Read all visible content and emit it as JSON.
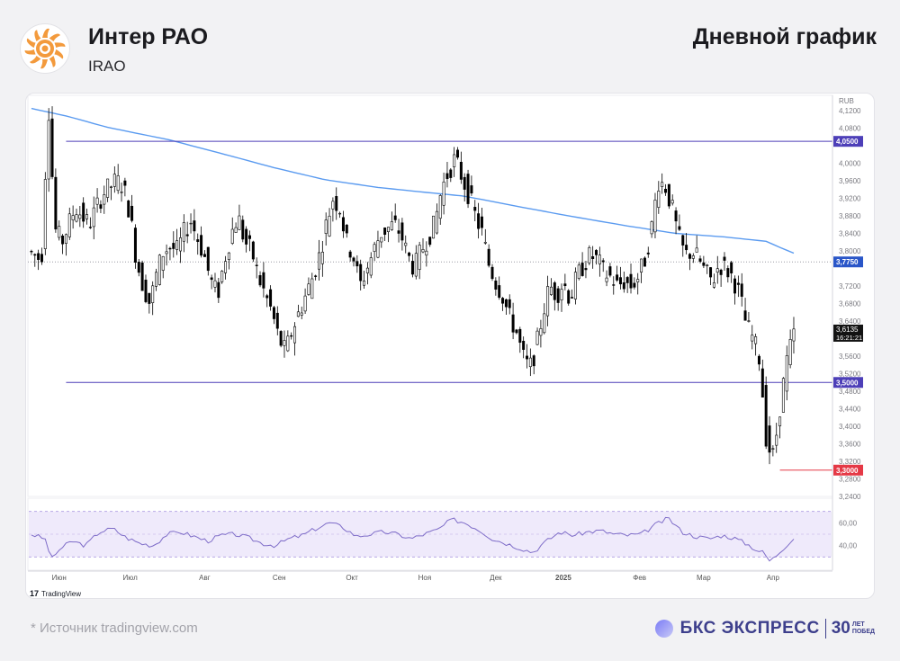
{
  "header": {
    "company": "Интер РАО",
    "ticker": "IRAO",
    "chart_type_label": "Дневной график"
  },
  "footer": {
    "source": "* Источник tradingview.com",
    "brand_name": "БКС ЭКСПРЕСС",
    "brand_years": "30",
    "brand_tag_1": "ЛЕТ",
    "brand_tag_2": "ПОБЕД",
    "watermark": "TradingView"
  },
  "colors": {
    "up_candle": "#ffffff",
    "down_candle": "#000000",
    "moving_average": "#5b9bf0",
    "support_resistance": "#4d3fb8",
    "low_marker": "#e53946",
    "rsi_line": "#7e6cc8",
    "rsi_band": "#efeafb"
  },
  "chart_data": {
    "type": "candlestick",
    "currency": "RUB",
    "y_range": [
      3.24,
      4.155
    ],
    "y_ticks": [
      "4,1200",
      "4,0800",
      "4,0000",
      "3,9600",
      "3,9200",
      "3,8800",
      "3,8400",
      "3,8000",
      "3,7200",
      "3,6800",
      "3,6400",
      "3,5600",
      "3,5200",
      "3,4800",
      "3,4400",
      "3,4000",
      "3,3600",
      "3,3200",
      "3,2800",
      "3,2400"
    ],
    "x_labels": [
      "Июн",
      "Июл",
      "Авг",
      "Сен",
      "Окт",
      "Ноя",
      "Дек",
      "2025",
      "Фев",
      "Мар",
      "Апр"
    ],
    "x_label_positions": [
      8.0,
      28.5,
      50.0,
      71.5,
      92.5,
      113.5,
      134.0,
      153.5,
      175.5,
      194.0,
      214.0
    ],
    "n_sessions": 221,
    "levels": [
      {
        "value": 4.05,
        "label": "4,0500",
        "style": "solid"
      },
      {
        "value": 3.775,
        "label": "3,7750",
        "style": "dotted"
      },
      {
        "value": 3.5,
        "label": "3,5000",
        "style": "solid"
      },
      {
        "value": 3.3,
        "label": "3,3000",
        "style": "low"
      }
    ],
    "last_price": {
      "value": 3.6135,
      "label": "3,6135",
      "time": "16:21:21"
    },
    "moving_average": [
      [
        0,
        4.125
      ],
      [
        10,
        4.108
      ],
      [
        22,
        4.082
      ],
      [
        40,
        4.053
      ],
      [
        55,
        4.022
      ],
      [
        70,
        3.99
      ],
      [
        85,
        3.962
      ],
      [
        100,
        3.945
      ],
      [
        112,
        3.935
      ],
      [
        125,
        3.925
      ],
      [
        140,
        3.902
      ],
      [
        155,
        3.88
      ],
      [
        172,
        3.857
      ],
      [
        186,
        3.84
      ],
      [
        200,
        3.832
      ],
      [
        212,
        3.822
      ],
      [
        216,
        3.808
      ],
      [
        220,
        3.795
      ]
    ],
    "price_path": [
      [
        0,
        3.8
      ],
      [
        4,
        3.78
      ],
      [
        6,
        4.14
      ],
      [
        8,
        3.85
      ],
      [
        10,
        3.82
      ],
      [
        14,
        3.9
      ],
      [
        18,
        3.86
      ],
      [
        22,
        3.93
      ],
      [
        26,
        3.96
      ],
      [
        28,
        3.95
      ],
      [
        30,
        3.89
      ],
      [
        32,
        3.78
      ],
      [
        34,
        3.72
      ],
      [
        36,
        3.68
      ],
      [
        38,
        3.75
      ],
      [
        40,
        3.8
      ],
      [
        42,
        3.81
      ],
      [
        44,
        3.8
      ],
      [
        46,
        3.84
      ],
      [
        48,
        3.87
      ],
      [
        50,
        3.83
      ],
      [
        52,
        3.79
      ],
      [
        54,
        3.73
      ],
      [
        56,
        3.7
      ],
      [
        58,
        3.78
      ],
      [
        60,
        3.84
      ],
      [
        62,
        3.88
      ],
      [
        64,
        3.82
      ],
      [
        66,
        3.8
      ],
      [
        68,
        3.74
      ],
      [
        70,
        3.7
      ],
      [
        72,
        3.66
      ],
      [
        74,
        3.6
      ],
      [
        76,
        3.57
      ],
      [
        78,
        3.62
      ],
      [
        80,
        3.66
      ],
      [
        82,
        3.7
      ],
      [
        84,
        3.74
      ],
      [
        86,
        3.79
      ],
      [
        88,
        3.86
      ],
      [
        90,
        3.92
      ],
      [
        92,
        3.9
      ],
      [
        94,
        3.82
      ],
      [
        96,
        3.79
      ],
      [
        98,
        3.72
      ],
      [
        100,
        3.76
      ],
      [
        102,
        3.8
      ],
      [
        104,
        3.84
      ],
      [
        106,
        3.85
      ],
      [
        108,
        3.86
      ],
      [
        110,
        3.84
      ],
      [
        112,
        3.79
      ],
      [
        114,
        3.76
      ],
      [
        116,
        3.8
      ],
      [
        118,
        3.83
      ],
      [
        120,
        3.86
      ],
      [
        122,
        3.94
      ],
      [
        124,
        3.98
      ],
      [
        126,
        4.01
      ],
      [
        128,
        3.97
      ],
      [
        130,
        3.93
      ],
      [
        132,
        3.88
      ],
      [
        134,
        3.84
      ],
      [
        136,
        3.77
      ],
      [
        138,
        3.73
      ],
      [
        140,
        3.7
      ],
      [
        142,
        3.65
      ],
      [
        144,
        3.62
      ],
      [
        146,
        3.56
      ],
      [
        148,
        3.53
      ],
      [
        150,
        3.58
      ],
      [
        152,
        3.66
      ],
      [
        154,
        3.72
      ],
      [
        156,
        3.7
      ],
      [
        158,
        3.73
      ],
      [
        160,
        3.69
      ],
      [
        162,
        3.74
      ],
      [
        164,
        3.77
      ],
      [
        166,
        3.79
      ],
      [
        168,
        3.78
      ],
      [
        170,
        3.75
      ],
      [
        172,
        3.74
      ],
      [
        174,
        3.72
      ],
      [
        176,
        3.73
      ],
      [
        178,
        3.72
      ],
      [
        180,
        3.74
      ],
      [
        182,
        3.78
      ],
      [
        184,
        3.85
      ],
      [
        186,
        3.96
      ],
      [
        188,
        3.95
      ],
      [
        190,
        3.9
      ],
      [
        192,
        3.83
      ],
      [
        194,
        3.79
      ],
      [
        196,
        3.8
      ],
      [
        198,
        3.78
      ],
      [
        200,
        3.75
      ],
      [
        202,
        3.73
      ],
      [
        204,
        3.77
      ],
      [
        206,
        3.76
      ],
      [
        208,
        3.74
      ],
      [
        210,
        3.7
      ],
      [
        212,
        3.63
      ],
      [
        214,
        3.6
      ],
      [
        216,
        3.55
      ],
      [
        218,
        3.36
      ],
      [
        220,
        3.33
      ],
      [
        222,
        3.45
      ],
      [
        224,
        3.55
      ],
      [
        226,
        3.61
      ]
    ],
    "rsi_range": [
      20,
      80
    ],
    "rsi_ticks": [
      "60,00",
      "40,00"
    ],
    "rsi_path": [
      [
        0,
        50
      ],
      [
        4,
        46
      ],
      [
        6,
        28
      ],
      [
        8,
        36
      ],
      [
        12,
        44
      ],
      [
        16,
        40
      ],
      [
        20,
        52
      ],
      [
        24,
        55
      ],
      [
        28,
        47
      ],
      [
        32,
        42
      ],
      [
        36,
        40
      ],
      [
        40,
        50
      ],
      [
        44,
        52
      ],
      [
        48,
        48
      ],
      [
        52,
        44
      ],
      [
        56,
        49
      ],
      [
        60,
        50
      ],
      [
        64,
        47
      ],
      [
        68,
        42
      ],
      [
        72,
        40
      ],
      [
        76,
        46
      ],
      [
        80,
        49
      ],
      [
        84,
        55
      ],
      [
        88,
        60
      ],
      [
        92,
        56
      ],
      [
        96,
        48
      ],
      [
        100,
        50
      ],
      [
        104,
        52
      ],
      [
        108,
        50
      ],
      [
        112,
        46
      ],
      [
        116,
        50
      ],
      [
        120,
        54
      ],
      [
        124,
        63
      ],
      [
        128,
        60
      ],
      [
        132,
        54
      ],
      [
        136,
        46
      ],
      [
        140,
        42
      ],
      [
        144,
        38
      ],
      [
        148,
        34
      ],
      [
        152,
        44
      ],
      [
        156,
        52
      ],
      [
        160,
        49
      ],
      [
        164,
        52
      ],
      [
        168,
        53
      ],
      [
        172,
        50
      ],
      [
        176,
        49
      ],
      [
        180,
        50
      ],
      [
        184,
        58
      ],
      [
        188,
        64
      ],
      [
        190,
        58
      ],
      [
        192,
        52
      ],
      [
        196,
        48
      ],
      [
        200,
        46
      ],
      [
        204,
        49
      ],
      [
        208,
        46
      ],
      [
        212,
        40
      ],
      [
        214,
        36
      ],
      [
        216,
        34
      ],
      [
        218,
        26
      ],
      [
        220,
        32
      ],
      [
        224,
        44
      ],
      [
        226,
        49
      ]
    ]
  }
}
